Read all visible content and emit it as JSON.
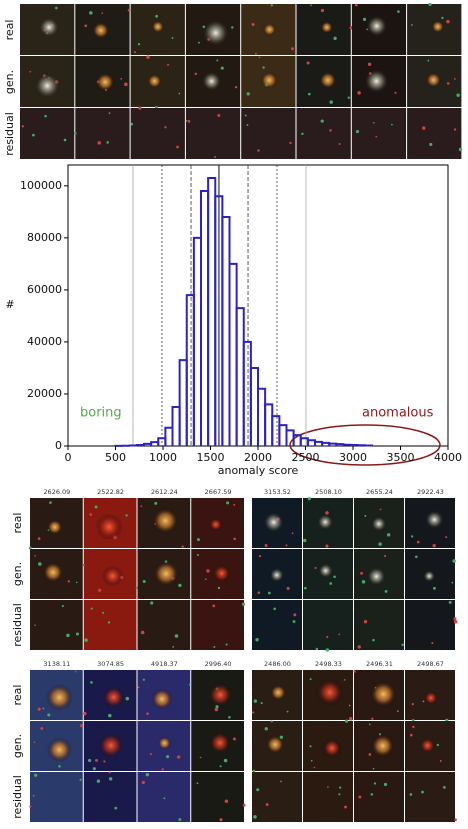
{
  "row_labels": [
    "real",
    "gen.",
    "residual"
  ],
  "chart_data": {
    "type": "histogram",
    "bins": [
      500,
      575,
      650,
      725,
      800,
      875,
      950,
      1025,
      1100,
      1175,
      1250,
      1325,
      1400,
      1475,
      1550,
      1625,
      1700,
      1775,
      1850,
      1925,
      2000,
      2075,
      2150,
      2225,
      2300,
      2375,
      2450,
      2525,
      2600,
      2675,
      2750,
      2825,
      2900,
      2975,
      3050,
      3125,
      3200
    ],
    "counts": [
      50,
      100,
      200,
      400,
      800,
      1500,
      3000,
      7000,
      15000,
      33000,
      58000,
      80000,
      98000,
      103000,
      96000,
      88000,
      70000,
      53000,
      40000,
      30000,
      22000,
      16000,
      11500,
      8000,
      6000,
      4200,
      3000,
      2200,
      1600,
      1200,
      900,
      700,
      500,
      400,
      300,
      200
    ],
    "color": "#2f22c4",
    "xlabel": "anomaly score",
    "ylabel": "#",
    "xlim": [
      0,
      4000
    ],
    "ylim": [
      0,
      108000
    ],
    "xticks": [
      0,
      500,
      1000,
      1500,
      2000,
      2500,
      3000,
      3500,
      4000
    ],
    "yticks": [
      0,
      20000,
      40000,
      60000,
      80000,
      100000
    ],
    "vlines": [
      {
        "value": 684,
        "style": "thin"
      },
      {
        "value": 989,
        "style": "dotted"
      },
      {
        "value": 1295,
        "style": "dashed"
      },
      {
        "value": 1589,
        "style": "solid"
      },
      {
        "value": 1895,
        "style": "dashed"
      },
      {
        "value": 2200,
        "style": "dotted"
      },
      {
        "value": 2505,
        "style": "thin"
      }
    ],
    "annotations": [
      {
        "text": "boring",
        "color": "#5aa84a"
      },
      {
        "text": "anomalous",
        "color": "#8b1a1a"
      }
    ]
  },
  "panels": [
    {
      "scores": [
        "2626.09",
        "2522.82",
        "2612.24",
        "2667.59"
      ]
    },
    {
      "scores": [
        "3153.52",
        "2508.10",
        "2655.24",
        "2922.43"
      ]
    },
    {
      "scores": [
        "3138.11",
        "3074.85",
        "4918.37",
        "2996.40"
      ]
    },
    {
      "scores": [
        "2486.00",
        "2498.33",
        "2496.31",
        "2498.67"
      ]
    }
  ]
}
